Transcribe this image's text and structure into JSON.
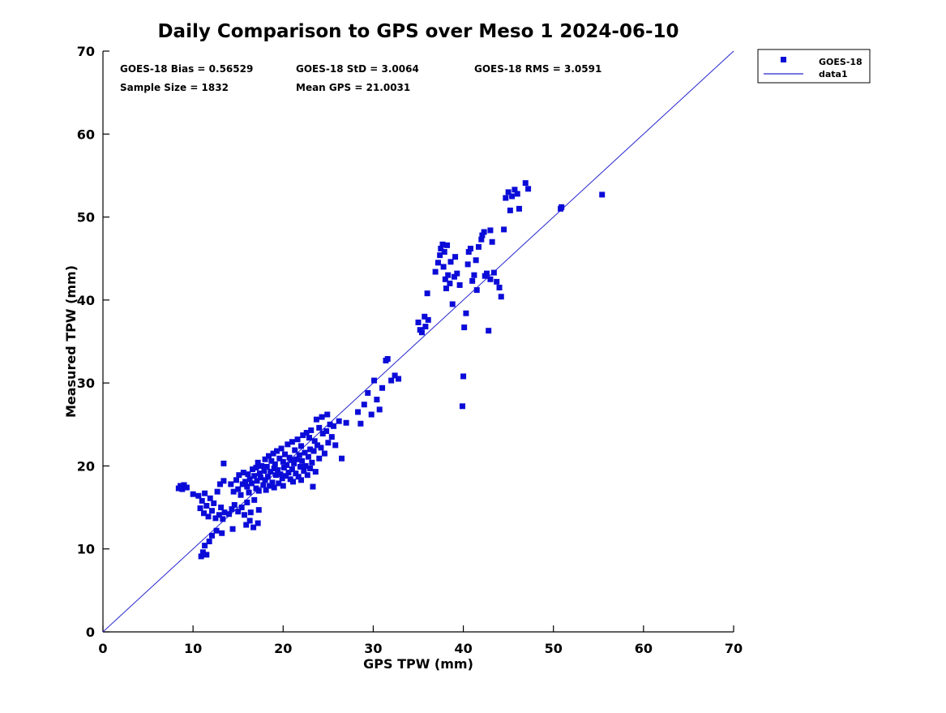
{
  "title": "Daily Comparison to GPS over Meso 1 2024-06-10",
  "chart_data": {
    "type": "scatter",
    "title": "Daily Comparison to GPS over Meso 1 2024-06-10",
    "xlabel": "GPS TPW (mm)",
    "ylabel": "Measured TPW (mm)",
    "xlim": [
      0,
      70
    ],
    "ylim": [
      0,
      70
    ],
    "xticks": [
      0,
      10,
      20,
      30,
      40,
      50,
      60,
      70
    ],
    "yticks": [
      0,
      10,
      20,
      30,
      40,
      50,
      60,
      70
    ],
    "grid": false,
    "legend_position": "top-right-outside",
    "annotations": {
      "bias": "GOES-18 Bias = 0.56529",
      "std": "GOES-18 StD = 3.0064",
      "rms": "GOES-18 RMS = 3.0591",
      "sample_size": "Sample Size = 1832",
      "mean_gps": "Mean GPS = 21.0031"
    },
    "colors": {
      "marker": "#0b0bd8",
      "line": "#2626cf",
      "axis": "#000000"
    },
    "series": [
      {
        "name": "GOES-18",
        "type": "scatter",
        "marker": "square",
        "points": [
          [
            8.4,
            17.3
          ],
          [
            8.6,
            17.6
          ],
          [
            8.8,
            17.2
          ],
          [
            9,
            17.7
          ],
          [
            9.3,
            17.4
          ],
          [
            10,
            16.6
          ],
          [
            10.9,
            9.1
          ],
          [
            11.1,
            9.6
          ],
          [
            11.3,
            10.4
          ],
          [
            11.5,
            9.3
          ],
          [
            11.8,
            10.9
          ],
          [
            12.1,
            11.6
          ],
          [
            12.6,
            12.2
          ],
          [
            13.2,
            11.9
          ],
          [
            14.4,
            12.4
          ],
          [
            15.9,
            12.9
          ],
          [
            16.3,
            13.4
          ],
          [
            16.7,
            12.6
          ],
          [
            17.2,
            13.1
          ],
          [
            10.6,
            16.4
          ],
          [
            10.8,
            14.9
          ],
          [
            11,
            15.8
          ],
          [
            11.2,
            14.3
          ],
          [
            11.3,
            16.7
          ],
          [
            11.5,
            15.2
          ],
          [
            11.7,
            13.9
          ],
          [
            11.9,
            16.1
          ],
          [
            12.1,
            14.6
          ],
          [
            12.3,
            15.5
          ],
          [
            12.5,
            13.7
          ],
          [
            12.7,
            16.9
          ],
          [
            12.9,
            14.1
          ],
          [
            13.1,
            15
          ],
          [
            13.3,
            13.6
          ],
          [
            13.5,
            14.4
          ],
          [
            13,
            17.8
          ],
          [
            13.4,
            18.2
          ],
          [
            13.4,
            20.3
          ],
          [
            14,
            14.2
          ],
          [
            14.3,
            14.8
          ],
          [
            14.6,
            15.3
          ],
          [
            15,
            14.5
          ],
          [
            15.4,
            15
          ],
          [
            15.7,
            14.1
          ],
          [
            16,
            15.6
          ],
          [
            16.4,
            14.4
          ],
          [
            16.8,
            15.9
          ],
          [
            17.3,
            14.7
          ],
          [
            14.2,
            17.8
          ],
          [
            14.5,
            16.9
          ],
          [
            14.8,
            18.3
          ],
          [
            15,
            17.2
          ],
          [
            15.1,
            18.9
          ],
          [
            15.3,
            16.5
          ],
          [
            15.5,
            17.8
          ],
          [
            15.6,
            19.2
          ],
          [
            15.8,
            18.1
          ],
          [
            16,
            17.5
          ],
          [
            16.1,
            19
          ],
          [
            16.2,
            16.8
          ],
          [
            16.3,
            18.4
          ],
          [
            16.5,
            17.9
          ],
          [
            16.6,
            19.6
          ],
          [
            16.8,
            18.8
          ],
          [
            17,
            17.3
          ],
          [
            17,
            19.8
          ],
          [
            17.1,
            18.2
          ],
          [
            17.2,
            20.4
          ],
          [
            17.3,
            17
          ],
          [
            17.4,
            19.1
          ],
          [
            17.5,
            18.6
          ],
          [
            17.6,
            20
          ],
          [
            17.8,
            17.7
          ],
          [
            17.9,
            19.4
          ],
          [
            18,
            18.3
          ],
          [
            18,
            20.8
          ],
          [
            18.1,
            17.1
          ],
          [
            18.2,
            19.9
          ],
          [
            18.3,
            18.7
          ],
          [
            18.4,
            21.2
          ],
          [
            18.5,
            17.6
          ],
          [
            18.6,
            19.3
          ],
          [
            18.7,
            20.6
          ],
          [
            18.8,
            18
          ],
          [
            18.9,
            21.5
          ],
          [
            19,
            19.7
          ],
          [
            19,
            17.4
          ],
          [
            19.1,
            20.2
          ],
          [
            19.2,
            18.9
          ],
          [
            19.3,
            21.8
          ],
          [
            19.4,
            19.5
          ],
          [
            19.5,
            17.9
          ],
          [
            19.6,
            20.9
          ],
          [
            19.7,
            19
          ],
          [
            19.8,
            22.1
          ],
          [
            19.9,
            18.5
          ],
          [
            20,
            20.5
          ],
          [
            20,
            17.6
          ],
          [
            20.1,
            19.8
          ],
          [
            20.2,
            21.4
          ],
          [
            20.3,
            18.8
          ],
          [
            20.4,
            20.1
          ],
          [
            20.5,
            22.6
          ],
          [
            20.6,
            19.2
          ],
          [
            20.7,
            21
          ],
          [
            20.8,
            18.4
          ],
          [
            20.9,
            20.7
          ],
          [
            21,
            19.6
          ],
          [
            21,
            22.9
          ],
          [
            21.1,
            18.1
          ],
          [
            21.2,
            20.3
          ],
          [
            21.3,
            21.9
          ],
          [
            21.4,
            19.1
          ],
          [
            21.5,
            20.8
          ],
          [
            21.6,
            23.2
          ],
          [
            21.7,
            18.7
          ],
          [
            21.8,
            21.3
          ],
          [
            21.9,
            19.9
          ],
          [
            22,
            22.4
          ],
          [
            22,
            18.3
          ],
          [
            22.1,
            20.6
          ],
          [
            22.2,
            23.7
          ],
          [
            22.3,
            19.4
          ],
          [
            22.4,
            21.6
          ],
          [
            22.5,
            20
          ],
          [
            22.6,
            24
          ],
          [
            22.7,
            18.9
          ],
          [
            22.8,
            21.1
          ],
          [
            22.9,
            23.4
          ],
          [
            23,
            19.7
          ],
          [
            23,
            22
          ],
          [
            23.1,
            24.3
          ],
          [
            23.2,
            20.4
          ],
          [
            23.3,
            17.5
          ],
          [
            23.4,
            21.8
          ],
          [
            23.5,
            23
          ],
          [
            23.6,
            19.3
          ],
          [
            23.8,
            22.5
          ],
          [
            24,
            20.9
          ],
          [
            24,
            24.6
          ],
          [
            24.2,
            22.2
          ],
          [
            24.4,
            23.9
          ],
          [
            24.6,
            21.5
          ],
          [
            24.8,
            24.2
          ],
          [
            25,
            22.8
          ],
          [
            25.2,
            25
          ],
          [
            25.4,
            23.5
          ],
          [
            25.6,
            24.8
          ],
          [
            23.7,
            25.6
          ],
          [
            24.3,
            25.9
          ],
          [
            24.9,
            26.2
          ],
          [
            25.8,
            22.5
          ],
          [
            26.2,
            25.4
          ],
          [
            26.5,
            20.9
          ],
          [
            27,
            25.2
          ],
          [
            28.3,
            26.5
          ],
          [
            28.6,
            25.1
          ],
          [
            29,
            27.4
          ],
          [
            29.4,
            28.8
          ],
          [
            29.8,
            26.2
          ],
          [
            30.1,
            30.3
          ],
          [
            30.4,
            28
          ],
          [
            30.7,
            26.8
          ],
          [
            31,
            29.4
          ],
          [
            31.4,
            32.7
          ],
          [
            31.6,
            32.9
          ],
          [
            32,
            30.3
          ],
          [
            32.4,
            30.9
          ],
          [
            32.8,
            30.5
          ],
          [
            35,
            37.3
          ],
          [
            35.2,
            36.4
          ],
          [
            35.4,
            36.1
          ],
          [
            35.8,
            36.8
          ],
          [
            35.7,
            38
          ],
          [
            36.1,
            37.6
          ],
          [
            36,
            40.8
          ],
          [
            36.9,
            43.4
          ],
          [
            37.2,
            44.5
          ],
          [
            37.4,
            45.4
          ],
          [
            37.5,
            46.2
          ],
          [
            37.7,
            46.7
          ],
          [
            37.9,
            45.8
          ],
          [
            38.2,
            46.6
          ],
          [
            37.8,
            44
          ],
          [
            38,
            42.5
          ],
          [
            38.1,
            41.4
          ],
          [
            38.3,
            43
          ],
          [
            38.5,
            42
          ],
          [
            38.6,
            44.6
          ],
          [
            38.8,
            39.5
          ],
          [
            39,
            42.8
          ],
          [
            39.1,
            45.2
          ],
          [
            39.3,
            43.2
          ],
          [
            39.6,
            41.8
          ],
          [
            39.9,
            27.2
          ],
          [
            40,
            30.8
          ],
          [
            40.1,
            36.7
          ],
          [
            40.3,
            38.4
          ],
          [
            40.5,
            44.3
          ],
          [
            40.6,
            45.8
          ],
          [
            40.8,
            46.2
          ],
          [
            41,
            42.3
          ],
          [
            41.2,
            43
          ],
          [
            41.4,
            44.8
          ],
          [
            41.5,
            41.2
          ],
          [
            41.7,
            46.4
          ],
          [
            42,
            47.3
          ],
          [
            42.1,
            47.8
          ],
          [
            42.3,
            48.2
          ],
          [
            42.4,
            42.9
          ],
          [
            42.6,
            43.2
          ],
          [
            42.8,
            36.3
          ],
          [
            43,
            42.5
          ],
          [
            43,
            48.4
          ],
          [
            43.2,
            47
          ],
          [
            43.4,
            43.3
          ],
          [
            43.7,
            42.2
          ],
          [
            44,
            41.5
          ],
          [
            44.2,
            40.4
          ],
          [
            44.5,
            48.5
          ],
          [
            44.7,
            52.3
          ],
          [
            45,
            53
          ],
          [
            45.2,
            50.8
          ],
          [
            45.4,
            52.5
          ],
          [
            45.7,
            53.3
          ],
          [
            46,
            52.8
          ],
          [
            46.2,
            51
          ],
          [
            46.9,
            54.1
          ],
          [
            47.2,
            53.4
          ],
          [
            50.8,
            51
          ],
          [
            50.9,
            51.2
          ],
          [
            55.4,
            52.7
          ]
        ]
      },
      {
        "name": "data1",
        "type": "line",
        "points": [
          [
            0,
            0
          ],
          [
            70,
            70
          ]
        ]
      }
    ]
  },
  "legend": {
    "entries": [
      {
        "label": "GOES-18",
        "type": "marker"
      },
      {
        "label": "data1",
        "type": "line"
      }
    ]
  }
}
